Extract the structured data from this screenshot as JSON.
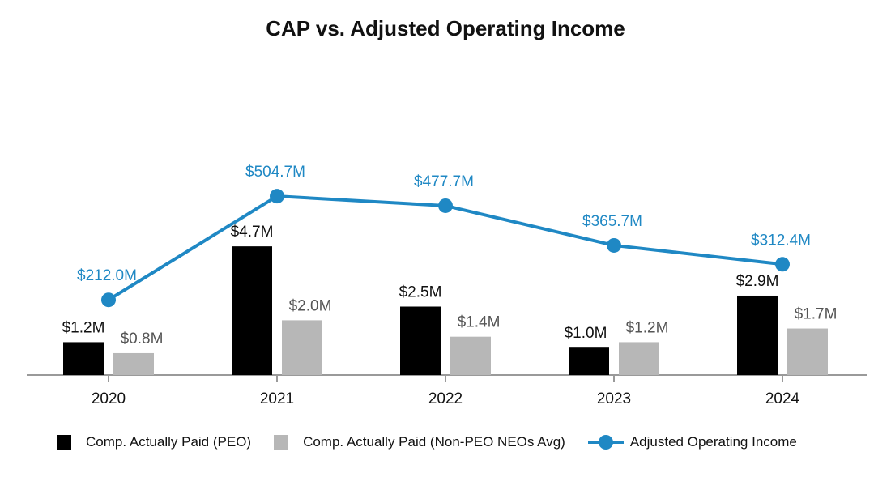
{
  "chart_data": {
    "type": "bar",
    "title": "CAP vs. Adjusted Operating Income",
    "categories": [
      "2020",
      "2021",
      "2022",
      "2023",
      "2024"
    ],
    "series": [
      {
        "name": "Comp. Actually Paid (PEO)",
        "kind": "bar",
        "color": "#000000",
        "values": [
          1.2,
          4.7,
          2.5,
          1.0,
          2.9
        ],
        "labels": [
          "$1.2M",
          "$4.7M",
          "$2.5M",
          "$1.0M",
          "$2.9M"
        ]
      },
      {
        "name": "Comp. Actually Paid (Non-PEO NEOs Avg)",
        "kind": "bar",
        "color": "#b7b7b7",
        "values": [
          0.8,
          2.0,
          1.4,
          1.2,
          1.7
        ],
        "labels": [
          "$0.8M",
          "$2.0M",
          "$1.4M",
          "$1.2M",
          "$1.7M"
        ]
      },
      {
        "name": "Adjusted Operating Income",
        "kind": "line",
        "color": "#1f88c4",
        "values": [
          212.0,
          504.7,
          477.7,
          365.7,
          312.4
        ],
        "labels": [
          "$212.0M",
          "$504.7M",
          "$477.7M",
          "$365.7M",
          "$312.4M"
        ]
      }
    ],
    "bar_axis": {
      "unit": "$M",
      "range": [
        0,
        5.0
      ]
    },
    "line_axis": {
      "unit": "$M",
      "range": [
        0,
        682
      ]
    },
    "grid": false,
    "legend_position": "bottom",
    "label_color": "#111111",
    "secondary_label_color": "#555555"
  }
}
